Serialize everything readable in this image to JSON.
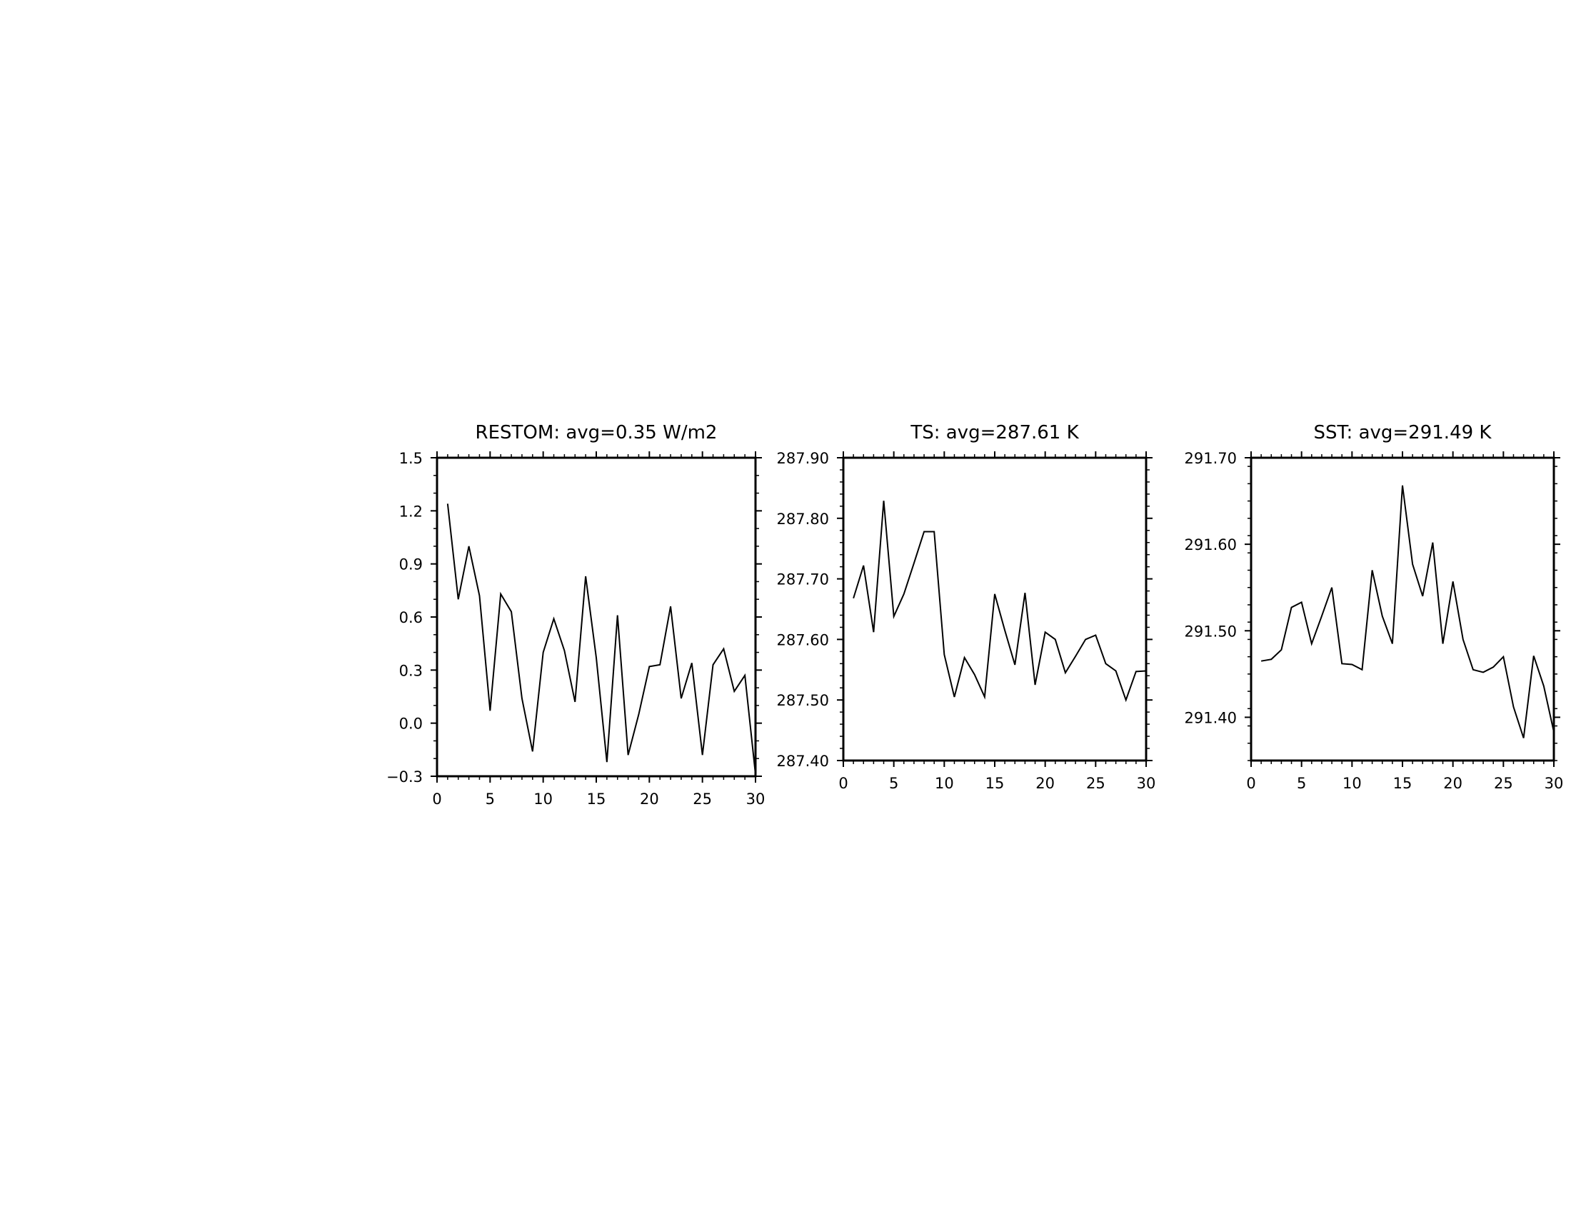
{
  "chart_data": [
    {
      "type": "line",
      "title": "RESTOM: avg=0.35 W/m2",
      "xlabel": "",
      "ylabel": "",
      "xlim": [
        0,
        30
      ],
      "ylim": [
        -0.3,
        1.5
      ],
      "xticks": [
        0,
        5,
        10,
        15,
        20,
        25,
        30
      ],
      "xtick_labels": [
        "0",
        "5",
        "10",
        "15",
        "20",
        "25",
        "30"
      ],
      "yticks": [
        -0.3,
        0.0,
        0.3,
        0.6,
        0.9,
        1.2,
        1.5
      ],
      "ytick_labels": [
        "−0.3",
        "0.0",
        "0.3",
        "0.6",
        "0.9",
        "1.2",
        "1.5"
      ],
      "x_minor_step": 1,
      "y_minor_step": 0.1,
      "grid": false,
      "series": [
        {
          "x": [
            1,
            2,
            3,
            4,
            5,
            6,
            7,
            8,
            9,
            10,
            11,
            12,
            13,
            14,
            15,
            16,
            17,
            18,
            19,
            20,
            21,
            22,
            23,
            24,
            25,
            26,
            27,
            28,
            29,
            30
          ],
          "values": [
            1.24,
            0.7,
            1.0,
            0.72,
            0.07,
            0.73,
            0.63,
            0.14,
            -0.16,
            0.4,
            0.59,
            0.41,
            0.12,
            0.83,
            0.37,
            -0.22,
            0.61,
            -0.18,
            0.05,
            0.32,
            0.33,
            0.66,
            0.14,
            0.34,
            -0.18,
            0.33,
            0.42,
            0.18,
            0.27,
            -0.29
          ]
        }
      ]
    },
    {
      "type": "line",
      "title": "TS: avg=287.61 K",
      "xlabel": "",
      "ylabel": "",
      "xlim": [
        0,
        30
      ],
      "ylim": [
        287.4,
        287.9
      ],
      "xticks": [
        0,
        5,
        10,
        15,
        20,
        25,
        30
      ],
      "xtick_labels": [
        "0",
        "5",
        "10",
        "15",
        "20",
        "25",
        "30"
      ],
      "yticks": [
        287.4,
        287.5,
        287.6,
        287.7,
        287.8,
        287.9
      ],
      "ytick_labels": [
        "287.40",
        "287.50",
        "287.60",
        "287.70",
        "287.80",
        "287.90"
      ],
      "x_minor_step": 1,
      "y_minor_step": 0.02,
      "grid": false,
      "series": [
        {
          "x": [
            1,
            2,
            3,
            4,
            5,
            6,
            7,
            8,
            9,
            10,
            11,
            12,
            13,
            14,
            15,
            16,
            17,
            18,
            19,
            20,
            21,
            22,
            23,
            24,
            25,
            26,
            27,
            28,
            29,
            30
          ],
          "values": [
            287.668,
            287.722,
            287.612,
            287.829,
            287.638,
            287.675,
            287.726,
            287.778,
            287.778,
            287.575,
            287.505,
            287.57,
            287.542,
            287.505,
            287.675,
            287.615,
            287.558,
            287.677,
            287.525,
            287.612,
            287.6,
            287.545,
            287.572,
            287.6,
            287.607,
            287.56,
            287.548,
            287.5,
            287.547,
            287.548
          ]
        }
      ]
    },
    {
      "type": "line",
      "title": "SST: avg=291.49 K",
      "xlabel": "",
      "ylabel": "",
      "xlim": [
        0,
        30
      ],
      "ylim": [
        291.35,
        291.7
      ],
      "xticks": [
        0,
        5,
        10,
        15,
        20,
        25,
        30
      ],
      "xtick_labels": [
        "0",
        "5",
        "10",
        "15",
        "20",
        "25",
        "30"
      ],
      "yticks": [
        291.4,
        291.5,
        291.6,
        291.7
      ],
      "ytick_labels": [
        "291.40",
        "291.50",
        "291.60",
        "291.70"
      ],
      "x_minor_step": 1,
      "y_minor_step": 0.02,
      "grid": false,
      "series": [
        {
          "x": [
            1,
            2,
            3,
            4,
            5,
            6,
            7,
            8,
            9,
            10,
            11,
            12,
            13,
            14,
            15,
            16,
            17,
            18,
            19,
            20,
            21,
            22,
            23,
            24,
            25,
            26,
            27,
            28,
            29,
            30
          ],
          "values": [
            291.465,
            291.467,
            291.478,
            291.527,
            291.533,
            291.485,
            291.517,
            291.55,
            291.462,
            291.461,
            291.455,
            291.57,
            291.517,
            291.485,
            291.668,
            291.577,
            291.54,
            291.602,
            291.485,
            291.557,
            291.49,
            291.455,
            291.452,
            291.458,
            291.47,
            291.412,
            291.376,
            291.471,
            291.436,
            291.383
          ]
        }
      ]
    }
  ]
}
